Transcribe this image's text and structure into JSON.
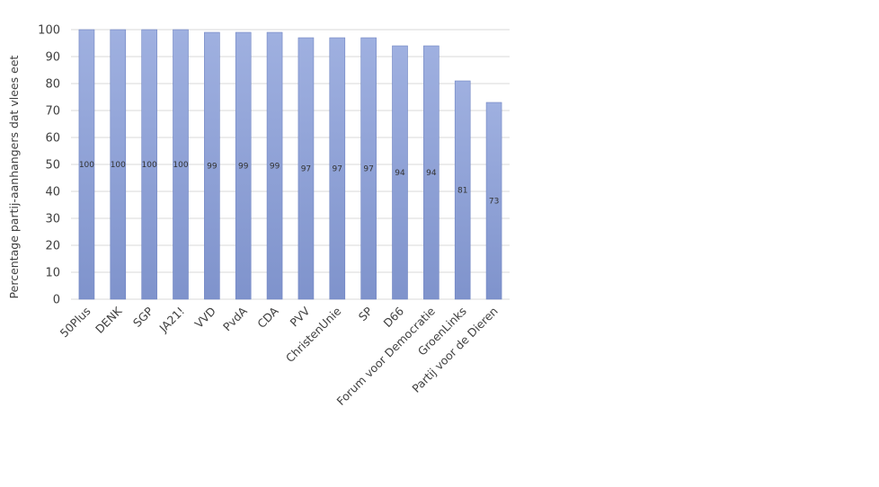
{
  "chart_data": {
    "type": "bar",
    "title": "",
    "xlabel": "",
    "ylabel": "Percentage partij-aanhangers  dat vlees eet",
    "categories": [
      "50Plus",
      "DENK",
      "SGP",
      "JA21!",
      "VVD",
      "PvdA",
      "CDA",
      "PVV",
      "ChristenUnie",
      "SP",
      "D66",
      "Forum voor Democratie",
      "GroenLinks",
      "Partij voor de Dieren"
    ],
    "values": [
      100,
      100,
      100,
      100,
      99,
      99,
      99,
      97,
      97,
      97,
      94,
      94,
      81,
      73
    ],
    "data_labels": [
      "100",
      "100",
      "100",
      "100",
      "99",
      "99",
      "99",
      "97",
      "97",
      "97",
      "94",
      "94",
      "81",
      "73"
    ],
    "ylim": [
      0,
      100
    ],
    "yticks": [
      0,
      10,
      20,
      30,
      40,
      50,
      60,
      70,
      80,
      90,
      100
    ],
    "grid": true,
    "legend": "none",
    "colors": {
      "bar_top": "#9fb0e0",
      "bar_bottom": "#7f93cc",
      "bar_edge": "#6f84c2",
      "grid": "#d9d9d9",
      "axis": "#d9d9d9"
    }
  }
}
